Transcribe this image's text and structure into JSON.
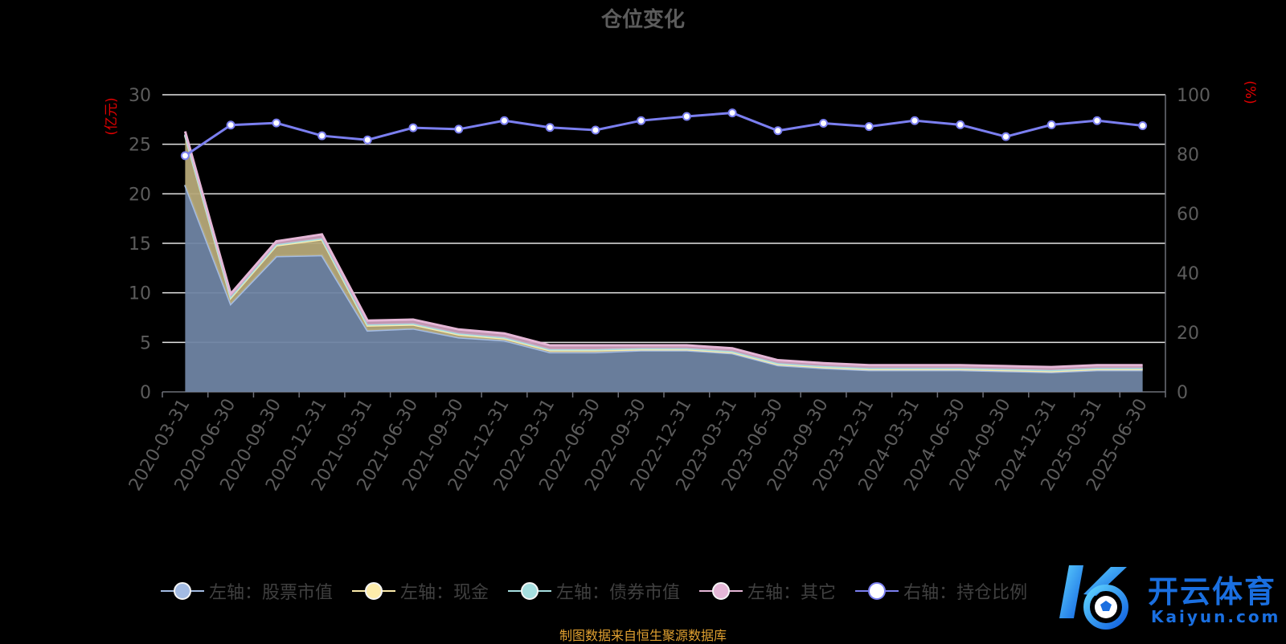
{
  "title": "仓位变化",
  "footer": "制图数据来自恒生聚源数据库",
  "watermark": {
    "cn": "开云体育",
    "en": "Kaiyun.com"
  },
  "colors": {
    "stock": "#a3bbe3",
    "cash": "#fdecab",
    "bond": "#a6dfe0",
    "other": "#e5b7d7",
    "ratio": "#7b7ff0",
    "axis_unit": "#e00000",
    "grid": "#e6e6e6",
    "tick": "#5c5c5c"
  },
  "legend": [
    {
      "label": "左轴：股票市值",
      "color": "#a3bbe3",
      "icon": "circle-marker-icon"
    },
    {
      "label": "左轴：现金",
      "color": "#fdecab",
      "icon": "circle-marker-icon"
    },
    {
      "label": "左轴：债券市值",
      "color": "#a6dfe0",
      "icon": "circle-marker-icon"
    },
    {
      "label": "左轴：其它",
      "color": "#e5b7d7",
      "icon": "circle-marker-icon"
    },
    {
      "label": "右轴：持仓比例",
      "color": "#ffffff",
      "icon": "circle-marker-icon"
    }
  ],
  "chart_data": {
    "type": "area",
    "title": "仓位变化",
    "left_unit": "(亿元)",
    "right_unit": "(%)",
    "ylim_left": [
      0,
      30
    ],
    "yticks_left": [
      0,
      5,
      10,
      15,
      20,
      25,
      30
    ],
    "ylim_right": [
      0,
      100
    ],
    "yticks_right": [
      0,
      20,
      40,
      60,
      80,
      100
    ],
    "grid": true,
    "legend_position": "bottom",
    "categories": [
      "2020-03-31",
      "2020-06-30",
      "2020-09-30",
      "2020-12-31",
      "2021-03-31",
      "2021-06-30",
      "2021-09-30",
      "2021-12-31",
      "2022-03-31",
      "2022-06-30",
      "2022-09-30",
      "2022-12-31",
      "2023-03-31",
      "2023-06-30",
      "2023-09-30",
      "2023-12-31",
      "2024-03-31",
      "2024-06-30",
      "2024-09-30",
      "2024-12-31",
      "2025-03-31",
      "2025-06-30"
    ],
    "series": [
      {
        "name": "左轴：股票市值",
        "axis": "left",
        "stack": true,
        "values": [
          20.9,
          8.9,
          13.7,
          13.8,
          6.2,
          6.4,
          5.5,
          5.2,
          4.0,
          4.0,
          4.2,
          4.2,
          3.9,
          2.7,
          2.4,
          2.2,
          2.2,
          2.2,
          2.1,
          2.0,
          2.2,
          2.2
        ]
      },
      {
        "name": "左轴：现金",
        "axis": "left",
        "stack": true,
        "values": [
          5.0,
          0.6,
          1.1,
          1.6,
          0.5,
          0.4,
          0.3,
          0.2,
          0.2,
          0.2,
          0.1,
          0.1,
          0.1,
          0.1,
          0.1,
          0.1,
          0.1,
          0.1,
          0.1,
          0.1,
          0.1,
          0.1
        ]
      },
      {
        "name": "左轴：债券市值",
        "axis": "left",
        "stack": true,
        "values": [
          0.1,
          0.1,
          0.1,
          0.1,
          0.1,
          0.1,
          0.1,
          0.1,
          0.1,
          0.1,
          0.1,
          0.1,
          0.1,
          0.1,
          0.1,
          0.1,
          0.1,
          0.1,
          0.1,
          0.1,
          0.1,
          0.1
        ]
      },
      {
        "name": "左轴：其它",
        "axis": "left",
        "stack": true,
        "values": [
          0.3,
          0.3,
          0.3,
          0.4,
          0.4,
          0.4,
          0.4,
          0.4,
          0.4,
          0.4,
          0.3,
          0.3,
          0.3,
          0.3,
          0.3,
          0.3,
          0.3,
          0.3,
          0.3,
          0.3,
          0.3,
          0.3
        ]
      },
      {
        "name": "右轴：持仓比例",
        "axis": "right",
        "type": "line",
        "values": [
          79.5,
          89.8,
          90.5,
          86.2,
          84.8,
          88.9,
          88.4,
          91.3,
          89.0,
          88.1,
          91.3,
          92.7,
          93.9,
          87.9,
          90.4,
          89.3,
          91.3,
          89.9,
          85.9,
          89.9,
          91.3,
          89.6
        ]
      }
    ]
  }
}
